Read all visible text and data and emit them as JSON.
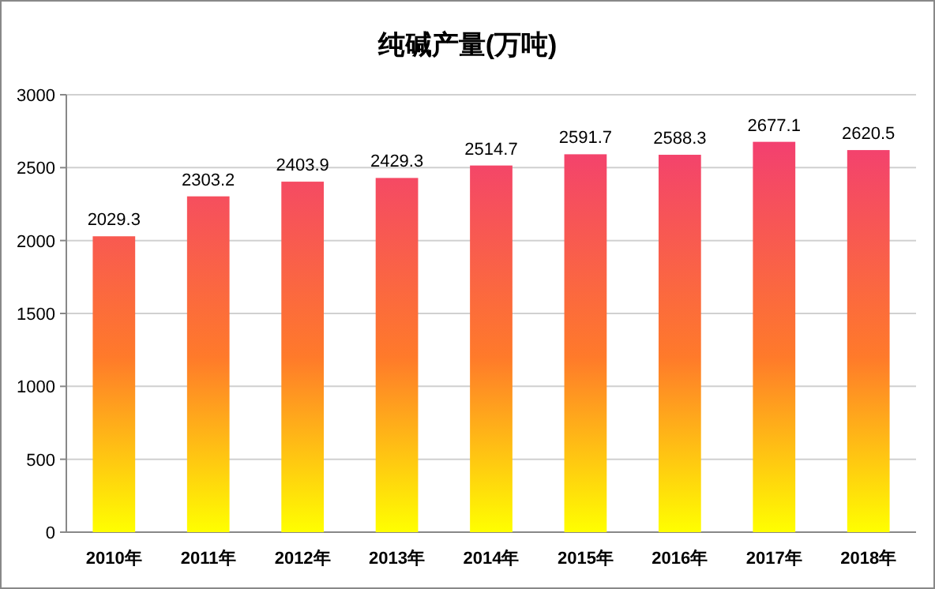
{
  "chart_data": {
    "type": "bar",
    "title": "纯碱产量(万吨)",
    "categories": [
      "2010年",
      "2011年",
      "2012年",
      "2013年",
      "2014年",
      "2015年",
      "2016年",
      "2017年",
      "2018年"
    ],
    "values": [
      2029.3,
      2303.2,
      2403.9,
      2429.3,
      2514.7,
      2591.7,
      2588.3,
      2677.1,
      2620.5
    ],
    "ylim": [
      0,
      3000
    ],
    "yticks": [
      0,
      500,
      1000,
      1500,
      2000,
      2500,
      3000
    ],
    "grid": "y",
    "data_labels": true
  }
}
